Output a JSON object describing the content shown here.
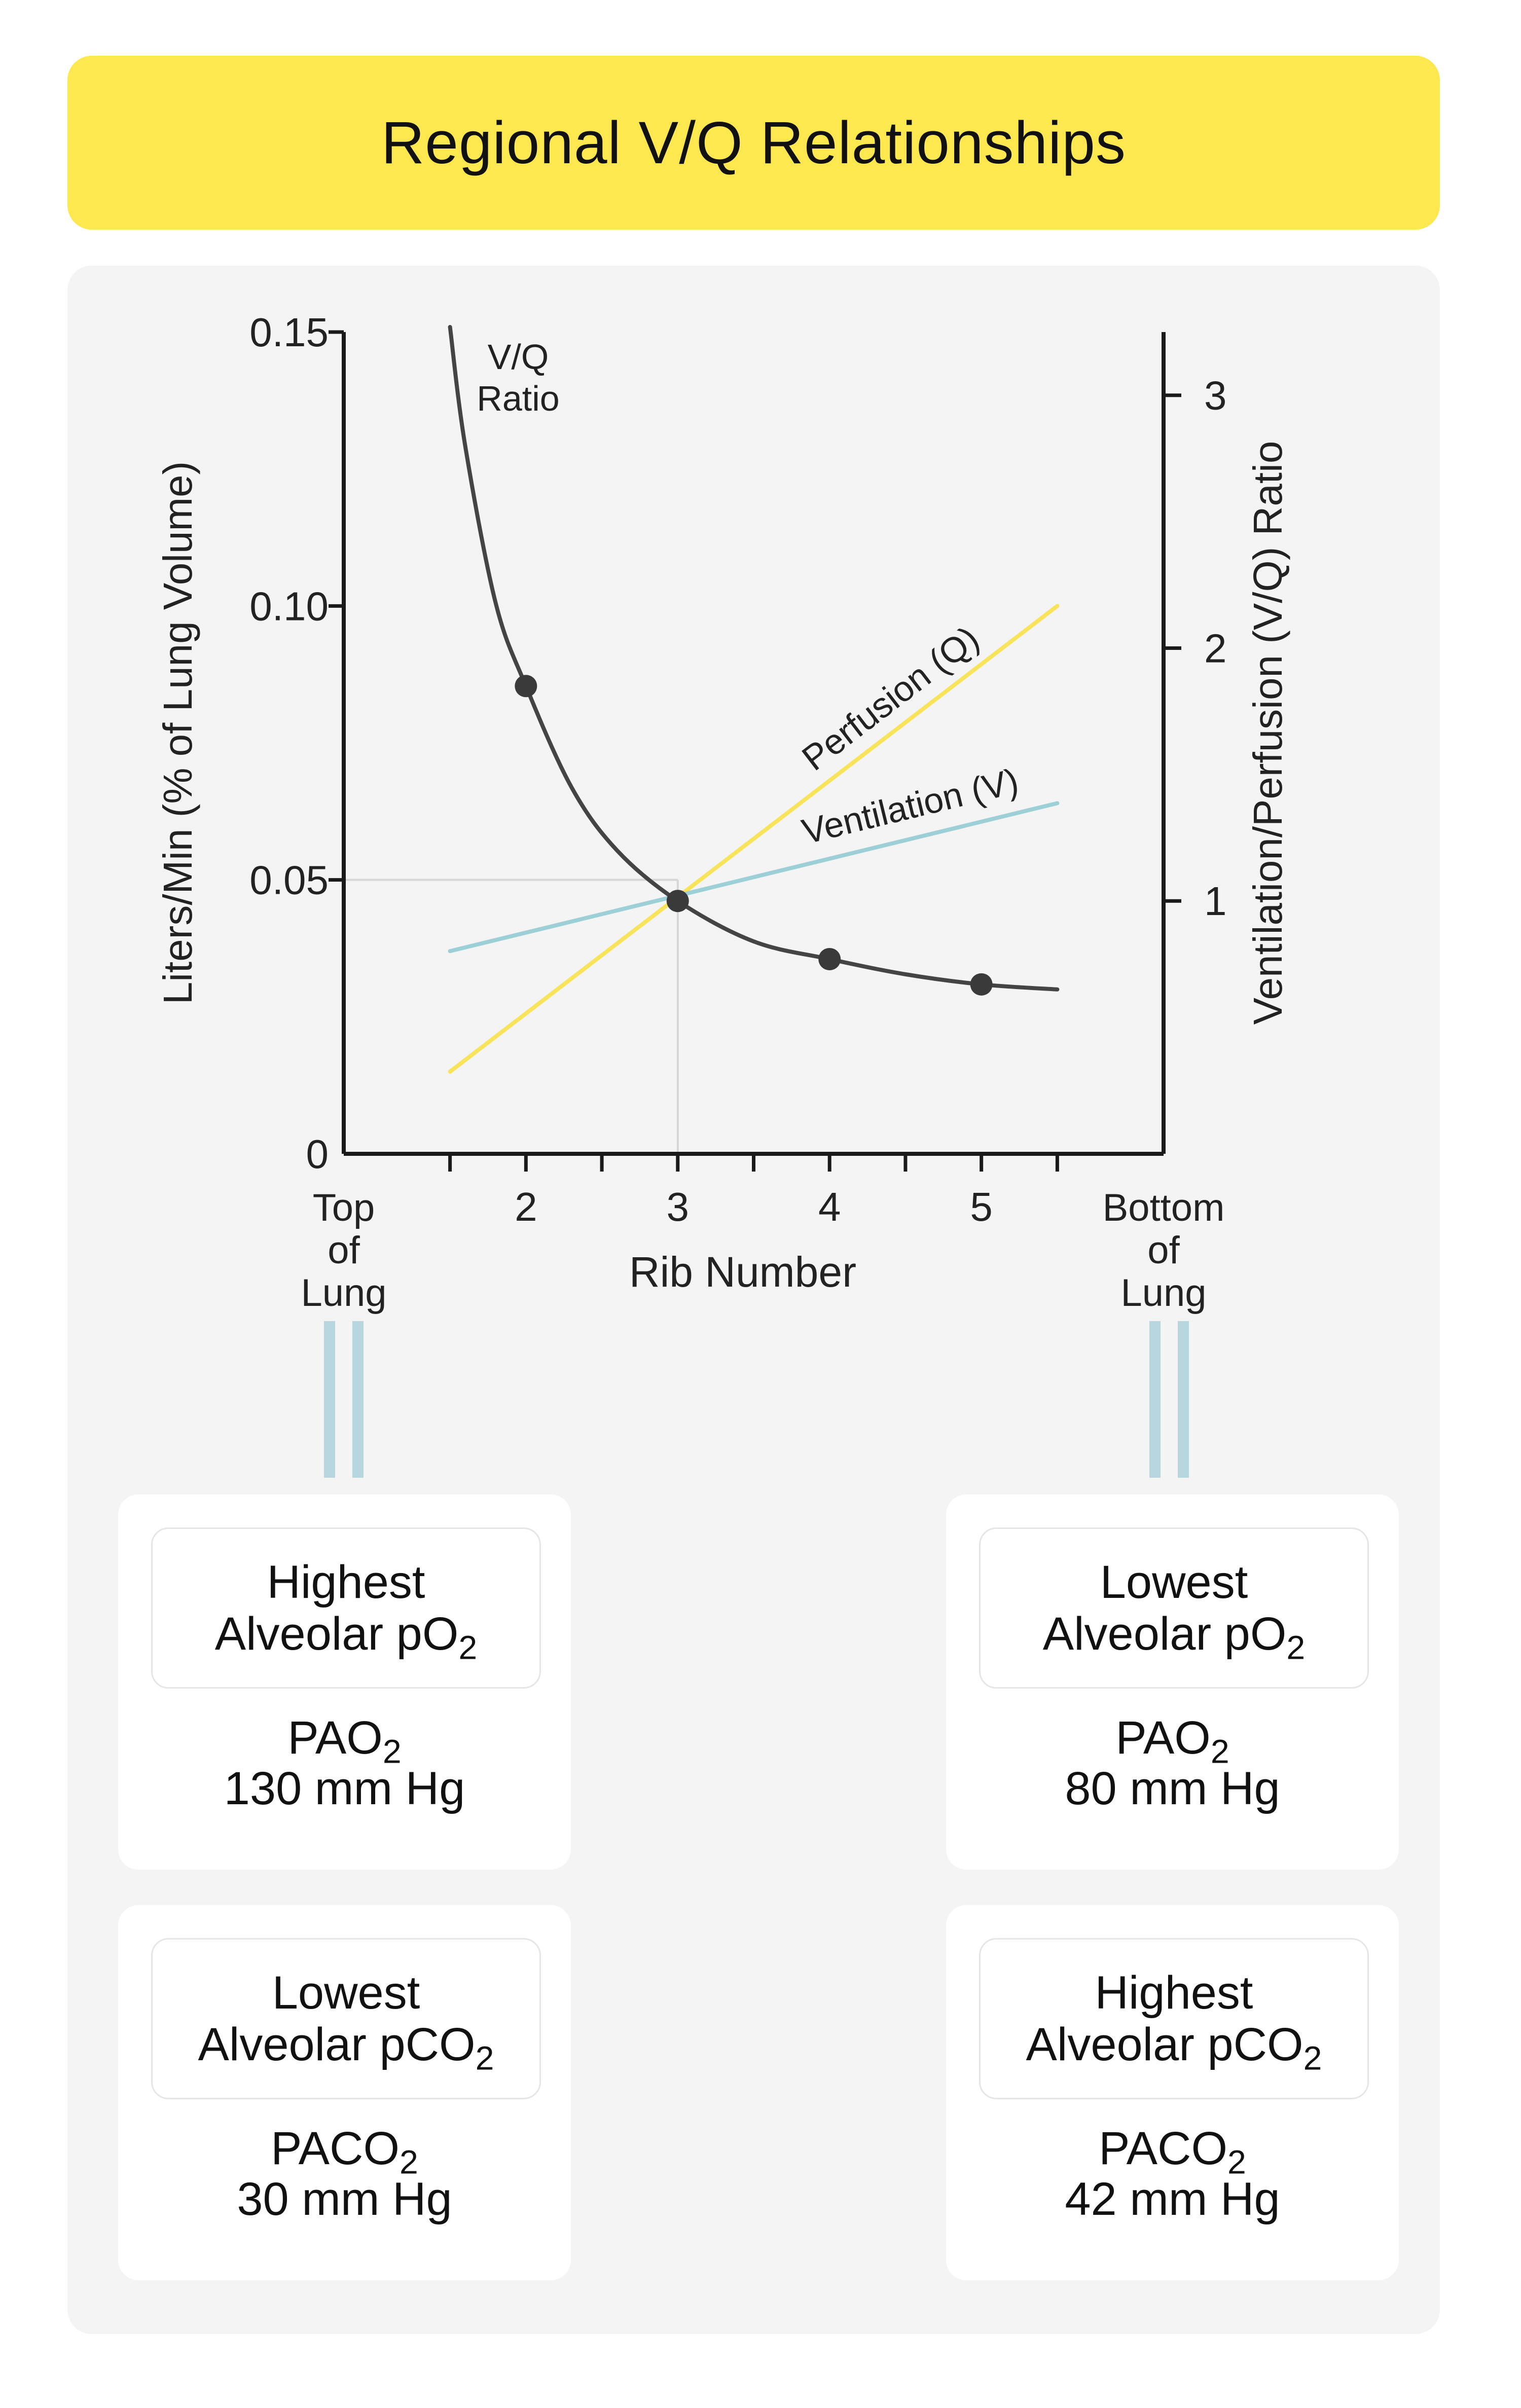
{
  "title": "Regional V/Q Relationships",
  "chart_data": {
    "type": "line",
    "xlabel": "Rib Number",
    "ylabel_left": "Liters/Min (% of Lung Volume)",
    "ylabel_right": "Ventilation/Perfusion (V/Q) Ratio",
    "x_ticks": [
      "2",
      "3",
      "4",
      "5"
    ],
    "x_end_labels": {
      "left": [
        "Top",
        "of",
        "Lung"
      ],
      "right": [
        "Bottom",
        "of",
        "Lung"
      ]
    },
    "y_left_ticks": [
      "0",
      "0.05",
      "0.10",
      "0.15"
    ],
    "y_left_range": [
      0,
      0.15
    ],
    "y_right_ticks": [
      "1",
      "2",
      "3"
    ],
    "y_right_range": [
      0,
      3.25
    ],
    "x_range": [
      0.8,
      6.2
    ],
    "reference_point": {
      "x": 3,
      "y": 0.05
    },
    "series": [
      {
        "name": "Perfusion (Q)",
        "axis": "left",
        "color": "#f8e45a",
        "x": [
          1.5,
          5.5
        ],
        "y": [
          0.015,
          0.1
        ]
      },
      {
        "name": "Ventilation (V)",
        "axis": "left",
        "color": "#9ccfd6",
        "x": [
          1.5,
          5.5
        ],
        "y": [
          0.037,
          0.064
        ]
      },
      {
        "name": "V/Q Ratio",
        "label_lines": [
          "V/Q",
          "Ratio"
        ],
        "axis": "right",
        "color": "#444444",
        "x": [
          1.5,
          1.6,
          1.8,
          2.0,
          2.3,
          2.6,
          3.0,
          3.5,
          4.0,
          4.5,
          5.0,
          5.5
        ],
        "y": [
          3.27,
          2.8,
          2.18,
          1.85,
          1.45,
          1.2,
          1.0,
          0.84,
          0.77,
          0.71,
          0.67,
          0.65
        ],
        "markers_x": [
          2,
          3,
          4,
          5
        ],
        "markers_y": [
          1.85,
          1.0,
          0.77,
          0.67
        ]
      }
    ],
    "grid": false
  },
  "cards": {
    "top_po2": {
      "heading": [
        "Highest",
        "Alveolar pO"
      ],
      "sub": "2",
      "value_head": "PAO",
      "value_sub": "2",
      "value": "130 mm Hg"
    },
    "bottom_po2": {
      "heading": [
        "Lowest",
        "Alveolar pO"
      ],
      "sub": "2",
      "value_head": "PAO",
      "value_sub": "2",
      "value": "80 mm Hg"
    },
    "top_pco2": {
      "heading": [
        "Lowest",
        "Alveolar pCO"
      ],
      "sub": "2",
      "value_head": "PACO",
      "value_sub": "2",
      "value": "30 mm Hg"
    },
    "bottom_pco2": {
      "heading": [
        "Highest",
        "Alveolar pCO"
      ],
      "sub": "2",
      "value_head": "PACO",
      "value_sub": "2",
      "value": "42 mm Hg"
    }
  },
  "colors": {
    "banner": "#fde84f",
    "panel": "#f4f4f4",
    "connector": "#b7d6de",
    "axis": "#1a1a1a"
  }
}
